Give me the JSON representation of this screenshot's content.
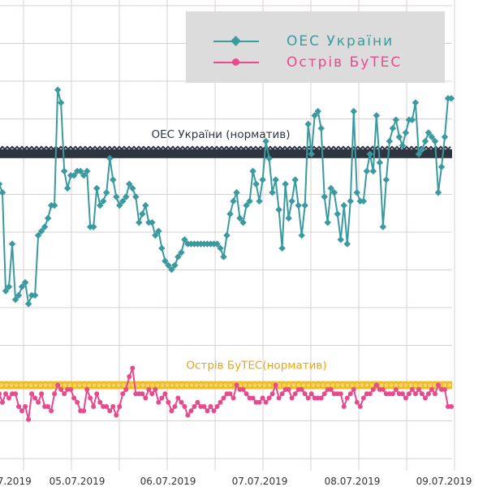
{
  "chart_data": {
    "type": "line",
    "x_tick_labels": [
      "05.07.2019",
      "06.07.2019",
      "07.07.2019",
      "08.07.2019",
      "09.07.2019"
    ],
    "series": [
      {
        "name": "ОЕС України",
        "color": "#3a9aa0",
        "marker": "diamond",
        "values": [
          74,
          57,
          55,
          32,
          33,
          43,
          30,
          31,
          33,
          34,
          29,
          31,
          31,
          45,
          46,
          47,
          49,
          52,
          52,
          79,
          76,
          60,
          56,
          59,
          59,
          60,
          60,
          59,
          60,
          47,
          47,
          56,
          52,
          53,
          55,
          63,
          58,
          54,
          52,
          53,
          54,
          57,
          56,
          54,
          48,
          50,
          52,
          48,
          48,
          45,
          46,
          42,
          39,
          38,
          37,
          38,
          40,
          41,
          44,
          43,
          43,
          43,
          43,
          43,
          43,
          43,
          43,
          43,
          43,
          42,
          40,
          45,
          50,
          53,
          55,
          49,
          48,
          52,
          53,
          60,
          57,
          53,
          58,
          67,
          63,
          55,
          58,
          51,
          42,
          57,
          49,
          53,
          58,
          52,
          45,
          52,
          71,
          64,
          73,
          74,
          70,
          54,
          48,
          56,
          55,
          50,
          44,
          52,
          43,
          53,
          74,
          55,
          53,
          53,
          60,
          64,
          60,
          73,
          62,
          47,
          58,
          67,
          70,
          72,
          68,
          66,
          69,
          72,
          72,
          76,
          64,
          65,
          67,
          69,
          68,
          67,
          55,
          61,
          68,
          77,
          77
        ]
      },
      {
        "name": "Острів БуТЕС",
        "color": "#e8498f",
        "marker": "circle",
        "values": [
          8,
          8,
          6,
          8,
          7,
          8,
          8,
          5,
          4,
          5,
          2,
          8,
          7,
          6,
          8,
          5,
          5,
          4,
          8,
          10,
          9,
          8,
          9,
          9,
          7,
          6,
          4,
          4,
          9,
          7,
          5,
          8,
          6,
          5,
          5,
          4,
          5,
          3,
          5,
          8,
          9,
          12,
          14,
          8,
          8,
          8,
          7,
          9,
          8,
          9,
          6,
          7,
          8,
          6,
          4,
          5,
          7,
          6,
          5,
          3,
          4,
          5,
          6,
          5,
          5,
          4,
          5,
          4,
          5,
          6,
          7,
          8,
          8,
          7,
          10,
          9,
          9,
          8,
          7,
          7,
          6,
          6,
          7,
          6,
          7,
          8,
          10,
          7,
          8,
          9,
          9,
          7,
          8,
          9,
          9,
          8,
          7,
          8,
          7,
          7,
          7,
          8,
          9,
          9,
          8,
          8,
          8,
          5,
          7,
          8,
          9,
          6,
          5,
          7,
          8,
          8,
          9,
          10,
          9,
          9,
          8,
          8,
          8,
          9,
          8,
          8,
          7,
          8,
          9,
          8,
          9,
          8,
          7,
          8,
          9,
          8,
          10,
          9,
          9,
          5,
          5
        ]
      }
    ],
    "reference_lines": [
      {
        "label": "ОЕС України (норматив)",
        "value": 64,
        "color": "#2f3540"
      },
      {
        "label": "Острів БуТЕС(норматив)",
        "value": 10,
        "color": "#f2c12e"
      }
    ],
    "ylim": [
      -10,
      100
    ],
    "grid": true,
    "legend_position": "top-right"
  },
  "legend": {
    "items": [
      {
        "label": "ОЕС України",
        "color": "#3a9aa0"
      },
      {
        "label": "Острів БуТЕС",
        "color": "#e8498f"
      }
    ]
  }
}
